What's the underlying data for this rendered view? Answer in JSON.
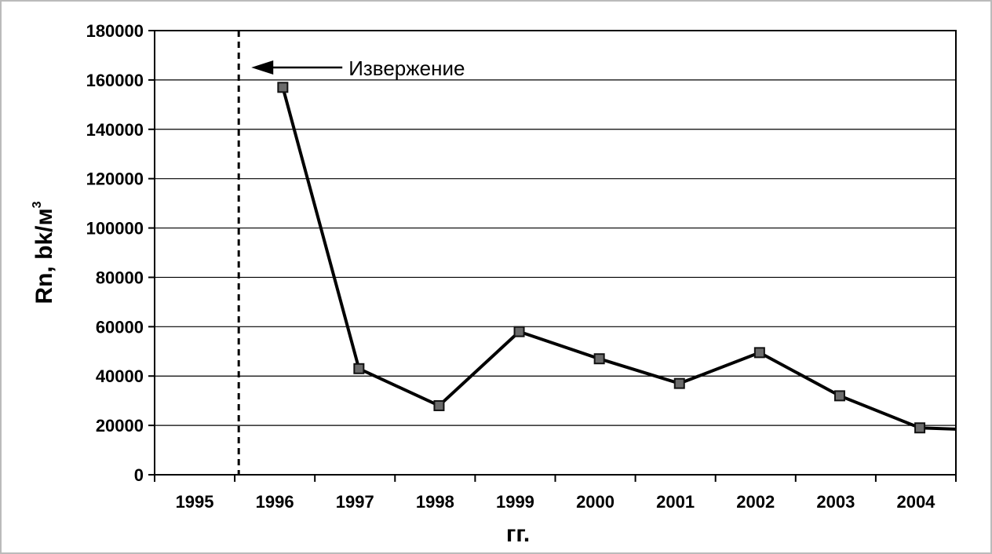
{
  "chart_data": {
    "type": "line",
    "xlabel": "гг.",
    "ylabel": "Rn, bk/м",
    "ylabel_superscript": "3",
    "x_tick_labels": [
      "1995",
      "1996",
      "1997",
      "1998",
      "1999",
      "2000",
      "2001",
      "2002",
      "2003",
      "2004"
    ],
    "y_tick_labels": [
      "0",
      "20000",
      "40000",
      "60000",
      "80000",
      "100000",
      "120000",
      "140000",
      "160000",
      "180000"
    ],
    "xlim": [
      1994.5,
      2004.5
    ],
    "ylim": [
      0,
      180000
    ],
    "grid": "horizontal",
    "line_color": "#000000",
    "series": [
      {
        "x": [
          1996.1,
          1997.05,
          1998.05,
          1999.05,
          2000.05,
          2001.05,
          2002.05,
          2003.05,
          2004.05,
          2004.5
        ],
        "values": [
          157000,
          43000,
          28000,
          58000,
          47000,
          37000,
          49500,
          32000,
          19000,
          18500
        ],
        "marker_count": 9
      }
    ],
    "annotations": [
      {
        "text": "Извержение",
        "type": "vertical-dashed-line",
        "x": 1995.55,
        "arrow": "left"
      }
    ]
  }
}
